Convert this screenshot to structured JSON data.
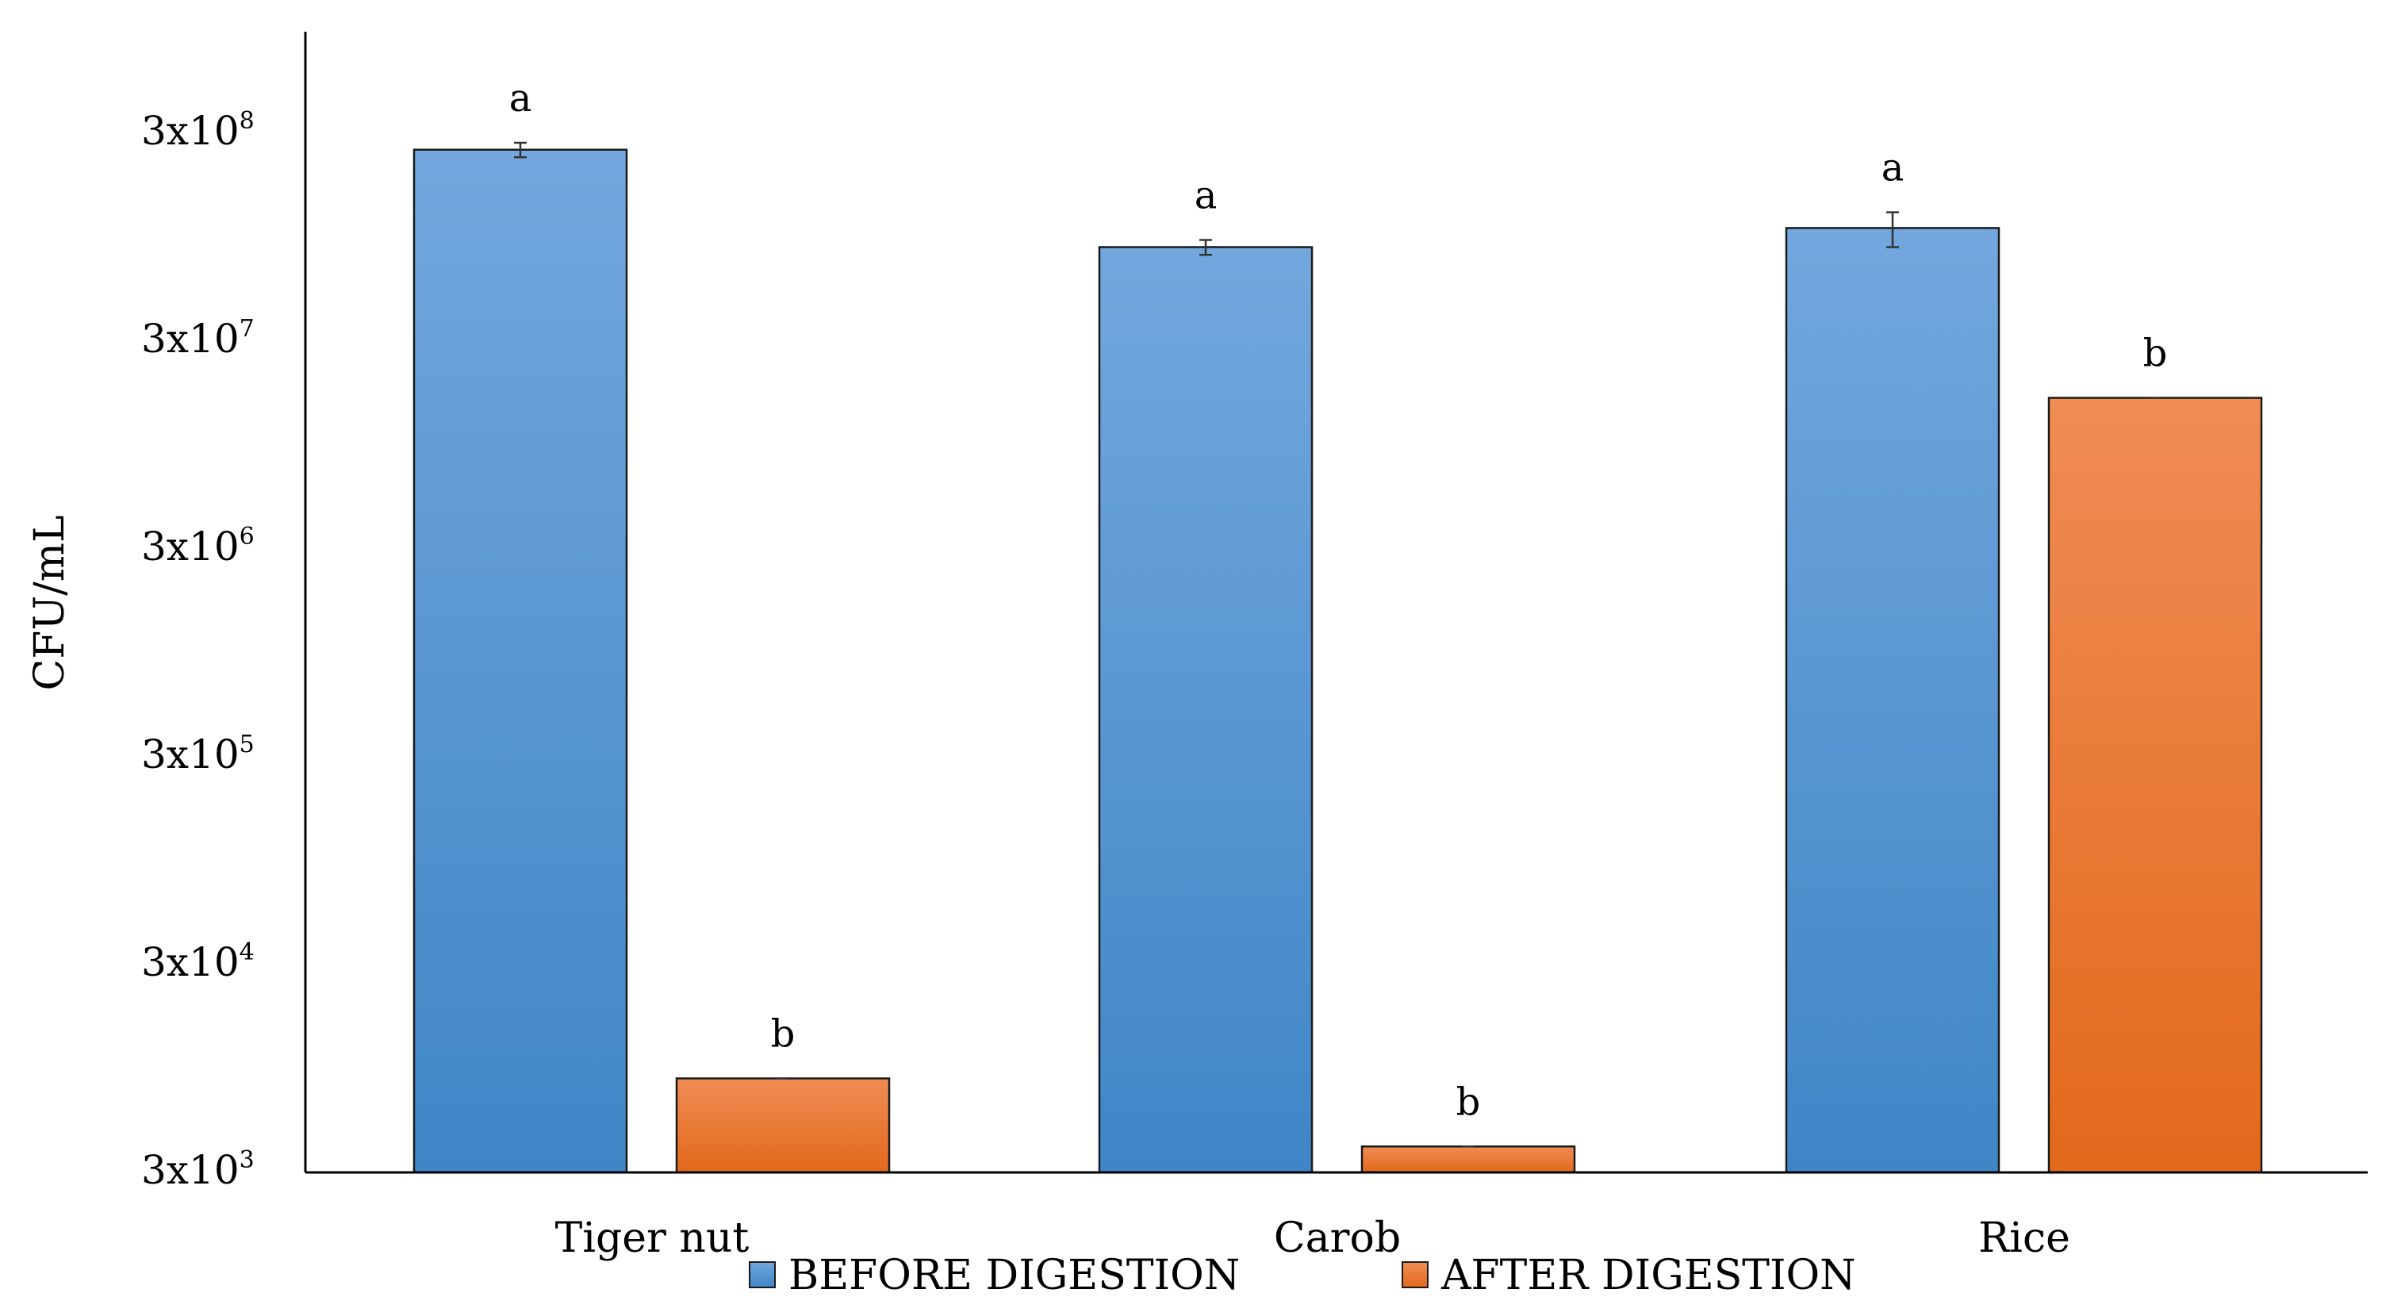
{
  "chart_data": {
    "type": "bar",
    "title": "",
    "xlabel": "",
    "ylabel": "CFU/mL",
    "yscale": "log",
    "ylim": [
      3000,
      600000000
    ],
    "yticks": [
      {
        "value": 3000,
        "base": "3x10",
        "exp": "3"
      },
      {
        "value": 30000,
        "base": "3x10",
        "exp": "4"
      },
      {
        "value": 300000,
        "base": "3x10",
        "exp": "5"
      },
      {
        "value": 3000000,
        "base": "3x10",
        "exp": "6"
      },
      {
        "value": 30000000,
        "base": "3x10",
        "exp": "7"
      },
      {
        "value": 300000000,
        "base": "3x10",
        "exp": "8"
      }
    ],
    "categories": [
      "Tiger nut",
      "Carob",
      "Rice"
    ],
    "legend_position": "bottom",
    "grid": false,
    "series": [
      {
        "name": "BEFORE DIGESTION",
        "color": "#5b9bd5",
        "values": [
          250000000,
          85000000,
          105000000
        ],
        "errors": [
          20000000,
          7000000,
          20000000
        ],
        "labels": [
          "a",
          "a",
          "a"
        ]
      },
      {
        "name": "AFTER DIGESTION",
        "color": "#ed7d31",
        "values": [
          8500,
          4000,
          16000000
        ],
        "errors": [
          0,
          0,
          0
        ],
        "labels": [
          "b",
          "b",
          "b"
        ]
      }
    ]
  }
}
